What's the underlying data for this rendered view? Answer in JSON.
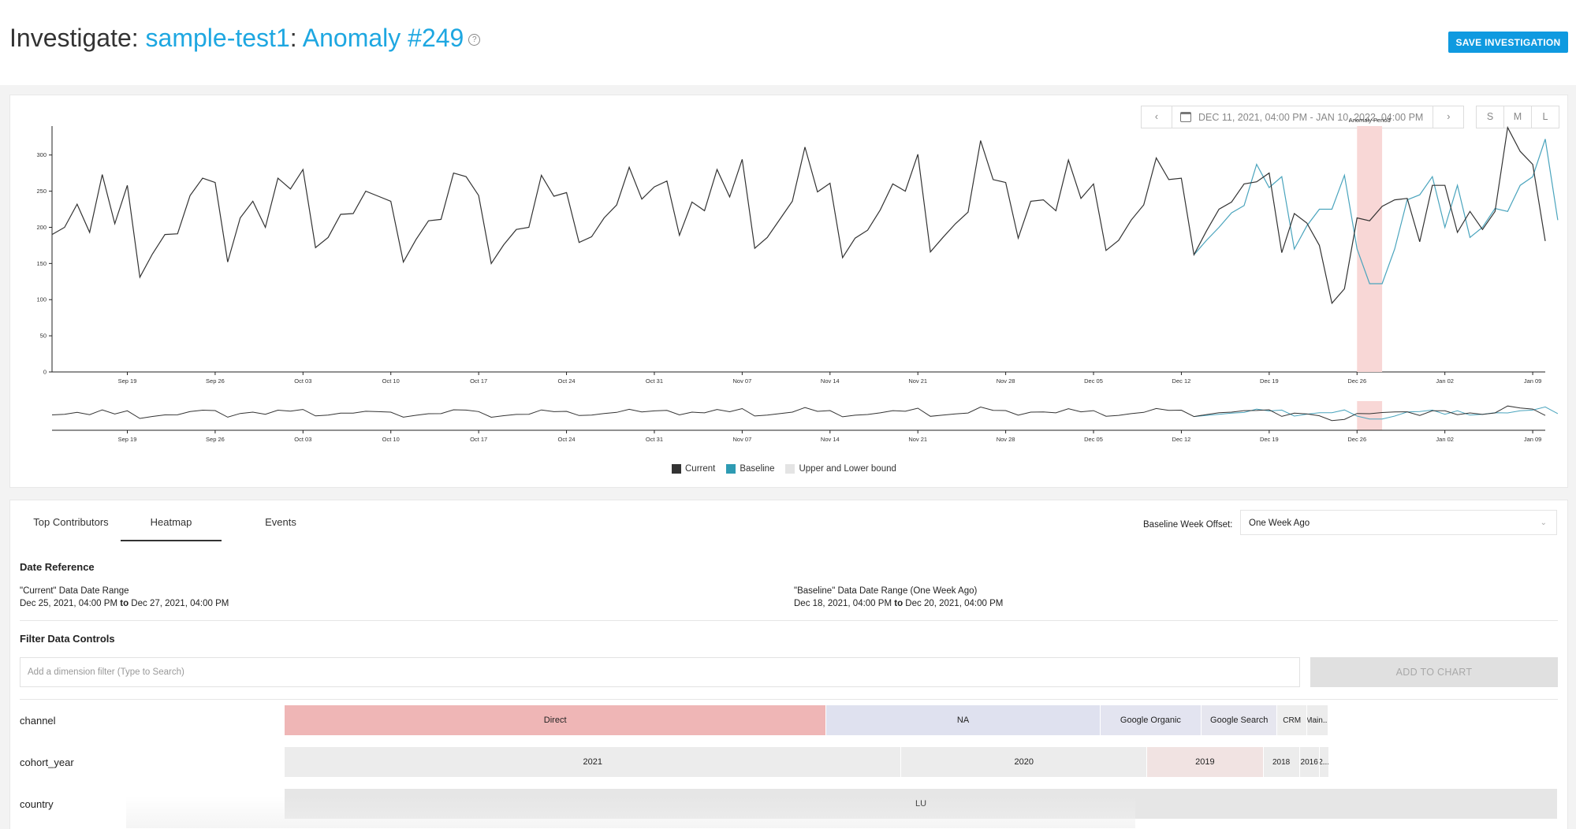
{
  "header": {
    "title_prefix": "Investigate: ",
    "dataset": "sample-test1",
    "separator": ": ",
    "anomaly": "Anomaly #249",
    "help_glyph": "?",
    "save_label": "SAVE INVESTIGATION"
  },
  "date_range": {
    "prev_glyph": "‹",
    "next_glyph": "›",
    "label": "DEC 11, 2021, 04:00 PM - JAN 10, 2022, 04:00 PM"
  },
  "size_options": [
    "S",
    "M",
    "L"
  ],
  "chart_data": {
    "type": "line",
    "ylim": [
      0,
      340
    ],
    "yticks": [
      "0",
      "50",
      "100",
      "150",
      "200",
      "250",
      "300"
    ],
    "x_ticks": [
      "Sep 19",
      "Sep 26",
      "Oct 03",
      "Oct 10",
      "Oct 17",
      "Oct 24",
      "Oct 31",
      "Nov 07",
      "Nov 14",
      "Nov 21",
      "Nov 28",
      "Dec 05",
      "Dec 12",
      "Dec 19",
      "Dec 26",
      "Jan 02",
      "Jan 09"
    ],
    "x_start": "Sep 13",
    "x_end": "Jan 09",
    "annotation": "Anomaly Period",
    "anomaly_period": [
      "Dec 25",
      "Dec 27"
    ],
    "series": [
      {
        "name": "Current",
        "color": "#333333",
        "values": [
          190,
          200,
          232,
          193,
          273,
          205,
          258,
          131,
          163,
          190,
          191,
          244,
          268,
          262,
          152,
          213,
          236,
          200,
          268,
          253,
          280,
          172,
          186,
          218,
          219,
          250,
          243,
          236,
          152,
          183,
          209,
          211,
          275,
          270,
          244,
          150,
          176,
          197,
          200,
          272,
          243,
          248,
          179,
          187,
          213,
          231,
          283,
          239,
          256,
          264,
          189,
          235,
          223,
          280,
          242,
          294,
          171,
          186,
          211,
          236,
          311,
          249,
          261,
          158,
          185,
          196,
          224,
          260,
          250,
          301,
          166,
          186,
          205,
          221,
          320,
          266,
          262,
          185,
          236,
          238,
          223,
          293,
          240,
          260,
          168,
          182,
          210,
          231,
          296,
          266,
          268,
          162,
          195,
          225,
          235,
          260,
          263,
          275,
          165,
          219,
          206,
          175,
          95,
          115,
          213,
          209,
          229,
          238,
          240,
          180,
          258,
          258,
          193,
          222,
          197,
          222,
          338,
          305,
          287,
          181
        ]
      },
      {
        "name": "Baseline",
        "color": "#4aa4bd",
        "start_index": 91,
        "values": [
          162,
          182,
          200,
          220,
          230,
          287,
          255,
          270,
          170,
          202,
          225,
          225,
          272,
          170,
          122,
          122,
          170,
          238,
          245,
          270,
          200,
          258,
          186,
          200,
          226,
          222,
          258,
          270,
          322,
          210
        ]
      }
    ],
    "legend": [
      "Current",
      "Baseline",
      "Upper and Lower bound"
    ],
    "legend_colors": [
      "#333333",
      "#2e9bb3",
      "#e4e4e4"
    ],
    "anomaly_color": "#f8d7d6"
  },
  "tabs": [
    "Top Contributors",
    "Heatmap",
    "Events"
  ],
  "baseline_offset": {
    "label": "Baseline Week Offset:",
    "value": "One Week Ago"
  },
  "date_reference": {
    "heading": "Date Reference",
    "current": {
      "title": "\"Current\" Data Date Range",
      "start": "Dec 25, 2021, 04:00 PM",
      "to": "to",
      "end": "Dec 27, 2021, 04:00 PM"
    },
    "baseline": {
      "title": "\"Baseline\" Data Date Range (One Week Ago)",
      "start": "Dec 18, 2021, 04:00 PM",
      "to": "to",
      "end": "Dec 20, 2021, 04:00 PM"
    }
  },
  "filter": {
    "heading": "Filter Data Controls",
    "placeholder": "Add a dimension filter (Type to Search)",
    "add_label": "ADD TO CHART"
  },
  "heatmap": [
    {
      "dimension": "channel",
      "cells": [
        {
          "label": "Direct",
          "share": 0.4256,
          "color": "#efb6b6"
        },
        {
          "label": "NA",
          "share": 0.2151,
          "color": "#dfe1ef"
        },
        {
          "label": "Google Organic",
          "share": 0.0795,
          "color": "#e3e4f0"
        },
        {
          "label": "Google Search",
          "share": 0.0596,
          "color": "#e6e6ef"
        },
        {
          "label": "CRM",
          "share": 0.0233,
          "color": "#eeeeee"
        },
        {
          "label": "Main...",
          "share": 0.0169,
          "color": "#ececec"
        }
      ]
    },
    {
      "dimension": "cohort_year",
      "cells": [
        {
          "label": "2021",
          "share": 0.4845,
          "color": "#ececec"
        },
        {
          "label": "2020",
          "share": 0.193,
          "color": "#ececec"
        },
        {
          "label": "2019",
          "share": 0.0913,
          "color": "#f1e3e2"
        },
        {
          "label": "2018",
          "share": 0.0285,
          "color": "#ececec"
        },
        {
          "label": "2016",
          "share": 0.0155,
          "color": "#ececec"
        },
        {
          "label": "2...",
          "share": 0.0072,
          "color": "#ececec"
        }
      ]
    },
    {
      "dimension": "country",
      "cells": [
        {
          "label": "LU",
          "share": 1.0,
          "color": "#e6e6e6"
        }
      ]
    }
  ]
}
